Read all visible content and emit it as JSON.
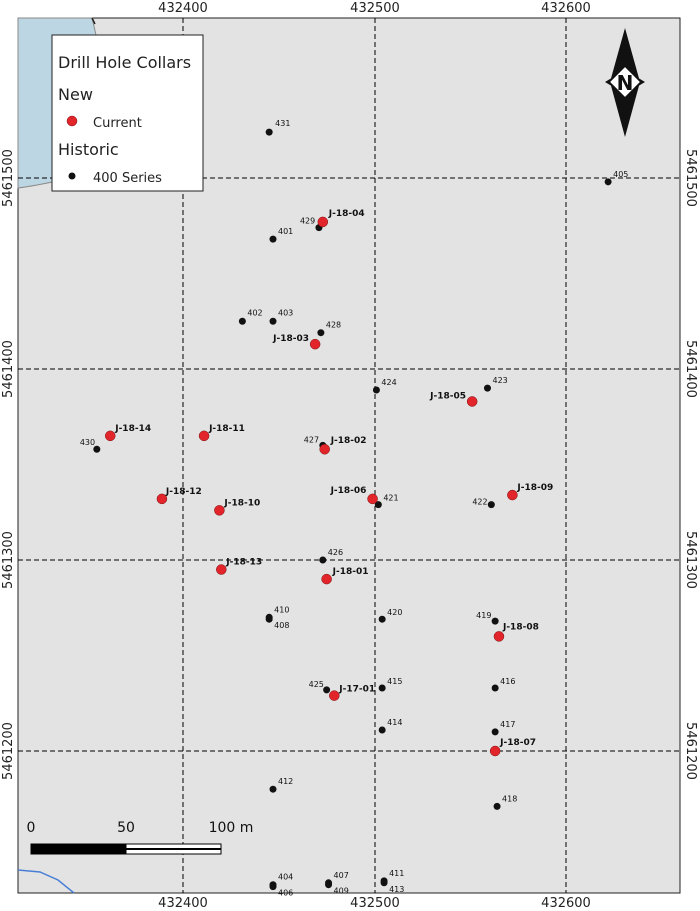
{
  "colors": {
    "map_bg": "#e3e3e3",
    "water": "#bcd6e3",
    "current": "#e2252b",
    "historic": "#111111",
    "grid": "#000000"
  },
  "axes": {
    "x_ticks": [
      "432400",
      "432500",
      "432600"
    ],
    "y_ticks": [
      "5461500",
      "5461400",
      "5461300",
      "5461200"
    ]
  },
  "legend": {
    "title": "Drill Hole Collars",
    "new_heading": "New",
    "current_label": "Current",
    "historic_heading": "Historic",
    "historic_label": "400 Series"
  },
  "north_arrow": {
    "letter": "N"
  },
  "scale_bar": {
    "labels": [
      "0",
      "50",
      "100 m"
    ]
  },
  "chart_data": {
    "type": "scatter",
    "crs_units": "m",
    "xlim": [
      432320,
      432660
    ],
    "ylim": [
      5461086,
      5461540
    ],
    "grid": true,
    "current_holes": [
      {
        "id": "J-18-04",
        "x": 432473,
        "y": 5461477
      },
      {
        "id": "J-18-03",
        "x": 432469,
        "y": 5461413
      },
      {
        "id": "J-18-05",
        "x": 432551,
        "y": 5461383
      },
      {
        "id": "J-18-14",
        "x": 432362,
        "y": 5461365
      },
      {
        "id": "J-18-11",
        "x": 432411,
        "y": 5461365
      },
      {
        "id": "J-18-02",
        "x": 432474,
        "y": 5461358
      },
      {
        "id": "J-18-12",
        "x": 432389,
        "y": 5461332
      },
      {
        "id": "J-18-10",
        "x": 432419,
        "y": 5461326
      },
      {
        "id": "J-18-06",
        "x": 432499,
        "y": 5461332
      },
      {
        "id": "J-18-09",
        "x": 432572,
        "y": 5461334
      },
      {
        "id": "J-18-13",
        "x": 432420,
        "y": 5461295
      },
      {
        "id": "J-18-01",
        "x": 432475,
        "y": 5461290
      },
      {
        "id": "J-18-08",
        "x": 432565,
        "y": 5461260
      },
      {
        "id": "J-17-01",
        "x": 432479,
        "y": 5461229
      },
      {
        "id": "J-18-07",
        "x": 432563,
        "y": 5461200
      }
    ],
    "historic_holes": [
      {
        "id": "431",
        "x": 432445,
        "y": 5461524
      },
      {
        "id": "405",
        "x": 432622,
        "y": 5461498
      },
      {
        "id": "429",
        "x": 432471,
        "y": 5461474
      },
      {
        "id": "401",
        "x": 432447,
        "y": 5461468
      },
      {
        "id": "402",
        "x": 432431,
        "y": 5461425
      },
      {
        "id": "403",
        "x": 432447,
        "y": 5461425
      },
      {
        "id": "428",
        "x": 432472,
        "y": 5461419
      },
      {
        "id": "424",
        "x": 432501,
        "y": 5461389
      },
      {
        "id": "423",
        "x": 432559,
        "y": 5461390
      },
      {
        "id": "430",
        "x": 432355,
        "y": 5461358
      },
      {
        "id": "427",
        "x": 432473,
        "y": 5461360
      },
      {
        "id": "421",
        "x": 432502,
        "y": 5461329
      },
      {
        "id": "422",
        "x": 432561,
        "y": 5461329
      },
      {
        "id": "426",
        "x": 432473,
        "y": 5461300
      },
      {
        "id": "410",
        "x": 432445,
        "y": 5461270
      },
      {
        "id": "408",
        "x": 432445,
        "y": 5461269
      },
      {
        "id": "420",
        "x": 432504,
        "y": 5461269
      },
      {
        "id": "419",
        "x": 432563,
        "y": 5461268
      },
      {
        "id": "425",
        "x": 432475,
        "y": 5461232
      },
      {
        "id": "415",
        "x": 432504,
        "y": 5461233
      },
      {
        "id": "416",
        "x": 432563,
        "y": 5461233
      },
      {
        "id": "414",
        "x": 432504,
        "y": 5461211
      },
      {
        "id": "417",
        "x": 432563,
        "y": 5461210
      },
      {
        "id": "412",
        "x": 432447,
        "y": 5461180
      },
      {
        "id": "418",
        "x": 432564,
        "y": 5461171
      },
      {
        "id": "404",
        "x": 432447,
        "y": 5461130
      },
      {
        "id": "406",
        "x": 432447,
        "y": 5461129
      },
      {
        "id": "407",
        "x": 432476,
        "y": 5461131
      },
      {
        "id": "409",
        "x": 432476,
        "y": 5461130
      },
      {
        "id": "411",
        "x": 432505,
        "y": 5461132
      },
      {
        "id": "413",
        "x": 432505,
        "y": 5461131
      }
    ]
  }
}
